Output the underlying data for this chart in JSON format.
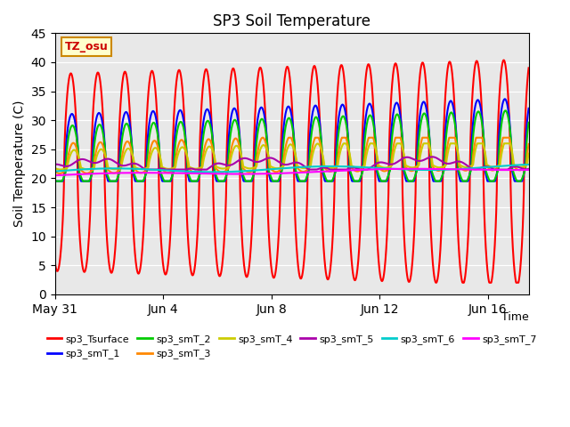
{
  "title": "SP3 Soil Temperature",
  "xlabel": "Time",
  "ylabel": "Soil Temperature (C)",
  "ylim": [
    0,
    45
  ],
  "yticks": [
    0,
    5,
    10,
    15,
    20,
    25,
    30,
    35,
    40,
    45
  ],
  "xtick_dates": [
    "May 31",
    "Jun 4",
    "Jun 8",
    "Jun 12",
    "Jun 16"
  ],
  "xtick_offsets_days": [
    0,
    4,
    8,
    12,
    16
  ],
  "n_days": 17.5,
  "annotation_text": "TZ_osu",
  "bg_color": "#e8e8e8",
  "series": [
    {
      "name": "sp3_Tsurface",
      "color": "#ff0000",
      "lw": 1.5
    },
    {
      "name": "sp3_smT_1",
      "color": "#0000ff",
      "lw": 1.5
    },
    {
      "name": "sp3_smT_2",
      "color": "#00cc00",
      "lw": 1.5
    },
    {
      "name": "sp3_smT_3",
      "color": "#ff8800",
      "lw": 1.5
    },
    {
      "name": "sp3_smT_4",
      "color": "#cccc00",
      "lw": 1.5
    },
    {
      "name": "sp3_smT_5",
      "color": "#aa00aa",
      "lw": 1.5
    },
    {
      "name": "sp3_smT_6",
      "color": "#00cccc",
      "lw": 1.5
    },
    {
      "name": "sp3_smT_7",
      "color": "#ff00ff",
      "lw": 1.5
    }
  ],
  "legend_ncol": 6
}
